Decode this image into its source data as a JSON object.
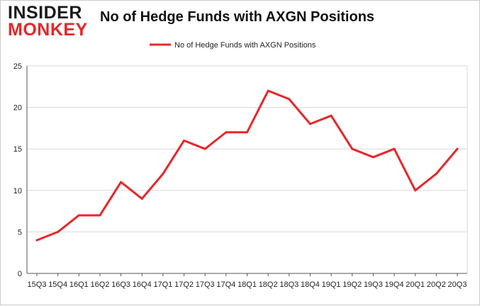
{
  "logo": {
    "line1": "INSIDER",
    "line2": "MONKEY"
  },
  "colors": {
    "series": "#e8262b",
    "grid": "#d9d9d9",
    "axis": "#555555"
  },
  "chart_data": {
    "type": "line",
    "title": "No of Hedge Funds with AXGN Positions",
    "legend": {
      "entries": [
        "No of Hedge Funds with AXGN Positions"
      ],
      "placement": "top-center"
    },
    "grid": true,
    "ylim": [
      0,
      25
    ],
    "yticks": [
      0,
      5,
      10,
      15,
      20,
      25
    ],
    "categories": [
      "15Q3",
      "15Q4",
      "16Q1",
      "16Q2",
      "16Q3",
      "16Q4",
      "17Q1",
      "17Q2",
      "17Q3",
      "17Q4",
      "18Q1",
      "18Q2",
      "18Q3",
      "18Q4",
      "19Q1",
      "19Q2",
      "19Q3",
      "19Q4",
      "20Q1",
      "20Q2",
      "20Q3"
    ],
    "series": [
      {
        "name": "No of Hedge Funds with AXGN Positions",
        "values": [
          4,
          5,
          7,
          7,
          11,
          9,
          12,
          16,
          15,
          17,
          17,
          22,
          21,
          18,
          19,
          15,
          14,
          15,
          10,
          12,
          15
        ]
      }
    ]
  }
}
